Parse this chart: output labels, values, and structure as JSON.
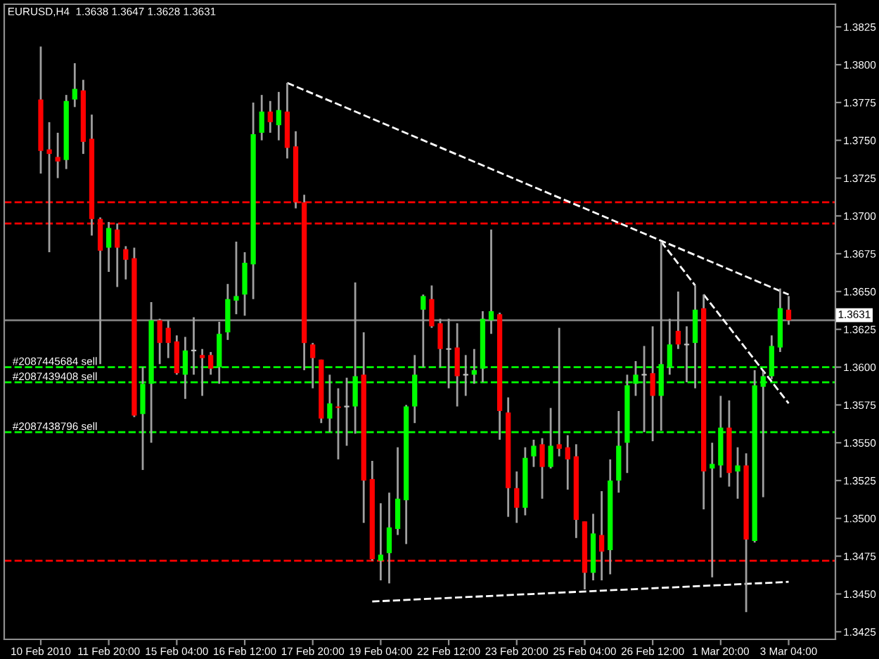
{
  "chart_data": {
    "type": "candlestick",
    "title": "EURUSD,H4  1.3638 1.3647 1.3628 1.3631",
    "categories": [
      "10 Feb 2010",
      null,
      null,
      null,
      null,
      null,
      null,
      null,
      "11 Feb 20:00",
      null,
      null,
      null,
      null,
      null,
      null,
      null,
      "15 Feb 04:00",
      null,
      null,
      null,
      null,
      null,
      null,
      null,
      "16 Feb 12:00",
      null,
      null,
      null,
      null,
      null,
      null,
      null,
      "17 Feb 20:00",
      null,
      null,
      null,
      null,
      null,
      null,
      null,
      "19 Feb 04:00",
      null,
      null,
      null,
      null,
      null,
      null,
      null,
      "22 Feb 12:00",
      null,
      null,
      null,
      null,
      null,
      null,
      null,
      "23 Feb 20:00",
      null,
      null,
      null,
      null,
      null,
      null,
      null,
      "25 Feb 04:00",
      null,
      null,
      null,
      null,
      null,
      null,
      null,
      "26 Feb 12:00",
      null,
      null,
      null,
      null,
      null,
      null,
      null,
      "1 Mar 20:00",
      null,
      null,
      null,
      null,
      null,
      null,
      null,
      "3 Mar 04:00"
    ],
    "ohlc": [
      [
        1.3777,
        1.3812,
        1.3728,
        1.3743
      ],
      [
        1.3744,
        1.3762,
        1.3676,
        1.3741
      ],
      [
        1.3739,
        1.3755,
        1.3725,
        1.3736
      ],
      [
        1.3737,
        1.378,
        1.3731,
        1.3776
      ],
      [
        1.3777,
        1.3801,
        1.3772,
        1.3784
      ],
      [
        1.3783,
        1.379,
        1.3741,
        1.3749
      ],
      [
        1.3751,
        1.3767,
        1.3687,
        1.3698
      ],
      [
        1.3698,
        1.3699,
        1.3602,
        1.3677
      ],
      [
        1.3679,
        1.3696,
        1.3663,
        1.3692
      ],
      [
        1.3691,
        1.3695,
        1.3653,
        1.3679
      ],
      [
        1.3678,
        1.368,
        1.3658,
        1.3671
      ],
      [
        1.3672,
        1.3679,
        1.3567,
        1.3568
      ],
      [
        1.3569,
        1.36,
        1.3532,
        1.3589
      ],
      [
        1.3589,
        1.3643,
        1.355,
        1.3631
      ],
      [
        1.3631,
        1.3632,
        1.3602,
        1.3616
      ],
      [
        1.3626,
        1.3631,
        1.3606,
        1.3616
      ],
      [
        1.3617,
        1.3621,
        1.3595,
        1.3596
      ],
      [
        1.3595,
        1.362,
        1.3579,
        1.3611
      ],
      [
        1.3611,
        1.3633,
        1.3595,
        1.3611
      ],
      [
        1.3608,
        1.3612,
        1.3581,
        1.3606
      ],
      [
        1.3608,
        1.361,
        1.3595,
        1.3599
      ],
      [
        1.36,
        1.363,
        1.3589,
        1.3622
      ],
      [
        1.3623,
        1.3655,
        1.3618,
        1.3645
      ],
      [
        1.3644,
        1.3683,
        1.3635,
        1.3647
      ],
      [
        1.3648,
        1.3676,
        1.3634,
        1.3669
      ],
      [
        1.3668,
        1.3775,
        1.3645,
        1.3754
      ],
      [
        1.3755,
        1.378,
        1.375,
        1.3769
      ],
      [
        1.3769,
        1.3776,
        1.3755,
        1.3762
      ],
      [
        1.376,
        1.3782,
        1.375,
        1.377
      ],
      [
        1.3769,
        1.3788,
        1.3738,
        1.3745
      ],
      [
        1.3746,
        1.3756,
        1.3705,
        1.3709
      ],
      [
        1.3709,
        1.3714,
        1.3598,
        1.3616
      ],
      [
        1.3615,
        1.3616,
        1.3586,
        1.3606
      ],
      [
        1.3605,
        1.3605,
        1.3563,
        1.3566
      ],
      [
        1.3566,
        1.3595,
        1.3557,
        1.3576
      ],
      [
        1.3574,
        1.3586,
        1.3539,
        1.3573
      ],
      [
        1.3574,
        1.3593,
        1.3548,
        1.3574
      ],
      [
        1.3574,
        1.3656,
        1.3556,
        1.3594
      ],
      [
        1.3595,
        1.3623,
        1.3497,
        1.3525
      ],
      [
        1.3526,
        1.3538,
        1.3472,
        1.3473
      ],
      [
        1.3472,
        1.351,
        1.3459,
        1.3476
      ],
      [
        1.3477,
        1.3517,
        1.3457,
        1.3494
      ],
      [
        1.3493,
        1.3547,
        1.3489,
        1.3513
      ],
      [
        1.3512,
        1.3575,
        1.3483,
        1.3574
      ],
      [
        1.3574,
        1.3608,
        1.3563,
        1.3595
      ],
      [
        1.3638,
        1.3648,
        1.36,
        1.3647
      ],
      [
        1.3645,
        1.3654,
        1.3626,
        1.3627
      ],
      [
        1.3629,
        1.3632,
        1.36,
        1.3612
      ],
      [
        1.3612,
        1.3632,
        1.3586,
        1.3612
      ],
      [
        1.3613,
        1.3629,
        1.3574,
        1.3594
      ],
      [
        1.3595,
        1.3608,
        1.3581,
        1.3595
      ],
      [
        1.3595,
        1.3612,
        1.3589,
        1.3598
      ],
      [
        1.3599,
        1.3637,
        1.359,
        1.3632
      ],
      [
        1.3631,
        1.3691,
        1.3622,
        1.3637
      ],
      [
        1.3635,
        1.3636,
        1.3552,
        1.3571
      ],
      [
        1.357,
        1.358,
        1.3501,
        1.352
      ],
      [
        1.352,
        1.3531,
        1.3497,
        1.3507
      ],
      [
        1.3507,
        1.3547,
        1.3502,
        1.354
      ],
      [
        1.3541,
        1.3552,
        1.3534,
        1.3548
      ],
      [
        1.3549,
        1.3553,
        1.3513,
        1.3534
      ],
      [
        1.3534,
        1.3573,
        1.3533,
        1.3548
      ],
      [
        1.3549,
        1.3626,
        1.3541,
        1.3546
      ],
      [
        1.3547,
        1.3555,
        1.3519,
        1.3539
      ],
      [
        1.3541,
        1.3549,
        1.3487,
        1.3499
      ],
      [
        1.3498,
        1.3498,
        1.3453,
        1.3464
      ],
      [
        1.3464,
        1.3503,
        1.3459,
        1.349
      ],
      [
        1.3489,
        1.3518,
        1.3459,
        1.3478
      ],
      [
        1.3479,
        1.3539,
        1.3463,
        1.3525
      ],
      [
        1.3525,
        1.3571,
        1.3517,
        1.3548
      ],
      [
        1.355,
        1.3595,
        1.353,
        1.3588
      ],
      [
        1.3589,
        1.3604,
        1.3581,
        1.3595
      ],
      [
        1.3595,
        1.3614,
        1.3557,
        1.3595
      ],
      [
        1.3596,
        1.3627,
        1.3551,
        1.3581
      ],
      [
        1.3581,
        1.3683,
        1.3558,
        1.3602
      ],
      [
        1.36,
        1.3632,
        1.3595,
        1.3615
      ],
      [
        1.3624,
        1.365,
        1.3612,
        1.3615
      ],
      [
        1.3615,
        1.3627,
        1.359,
        1.3615
      ],
      [
        1.3616,
        1.3654,
        1.3586,
        1.3638
      ],
      [
        1.3639,
        1.3648,
        1.3506,
        1.3531
      ],
      [
        1.3533,
        1.355,
        1.3461,
        1.3536
      ],
      [
        1.3535,
        1.3581,
        1.3527,
        1.356
      ],
      [
        1.356,
        1.3578,
        1.3521,
        1.353
      ],
      [
        1.3531,
        1.3547,
        1.3513,
        1.3535
      ],
      [
        1.3535,
        1.3543,
        1.3438,
        1.3486
      ],
      [
        1.3485,
        1.3598,
        1.3484,
        1.3588
      ],
      [
        1.3587,
        1.3597,
        1.3514,
        1.3594
      ],
      [
        1.3594,
        1.3621,
        1.3592,
        1.3614
      ],
      [
        1.3613,
        1.3652,
        1.361,
        1.3639
      ],
      [
        1.3638,
        1.3647,
        1.3628,
        1.3631
      ]
    ],
    "colors": [
      "#ff0000",
      "#ff0000",
      "#ff0000",
      "#00ff00",
      "#00ff00",
      "#ff0000",
      "#ff0000",
      "#ff0000",
      "#00ff00",
      "#ff0000",
      "#ff0000",
      "#ff0000",
      "#00ff00",
      "#00ff00",
      "#ff0000",
      "#ff0000",
      "#ff0000",
      "#00ff00",
      "#c0c0c0",
      "#ff0000",
      "#ff0000",
      "#00ff00",
      "#00ff00",
      "#00ff00",
      "#00ff00",
      "#00ff00",
      "#00ff00",
      "#ff0000",
      "#00ff00",
      "#ff0000",
      "#ff0000",
      "#ff0000",
      "#ff0000",
      "#ff0000",
      "#00ff00",
      "#ff0000",
      "#c0c0c0",
      "#00ff00",
      "#ff0000",
      "#ff0000",
      "#00ff00",
      "#00ff00",
      "#00ff00",
      "#00ff00",
      "#00ff00",
      "#00ff00",
      "#ff0000",
      "#ff0000",
      "#c0c0c0",
      "#ff0000",
      "#c0c0c0",
      "#00ff00",
      "#00ff00",
      "#00ff00",
      "#ff0000",
      "#ff0000",
      "#ff0000",
      "#00ff00",
      "#00ff00",
      "#ff0000",
      "#00ff00",
      "#ff0000",
      "#ff0000",
      "#ff0000",
      "#ff0000",
      "#00ff00",
      "#ff0000",
      "#00ff00",
      "#00ff00",
      "#00ff00",
      "#00ff00",
      "#c0c0c0",
      "#ff0000",
      "#00ff00",
      "#00ff00",
      "#ff0000",
      "#c0c0c0",
      "#00ff00",
      "#ff0000",
      "#00ff00",
      "#00ff00",
      "#ff0000",
      "#00ff00",
      "#ff0000",
      "#00ff00",
      "#00ff00",
      "#00ff00",
      "#00ff00",
      "#ff0000"
    ],
    "series": [
      {
        "type": "line",
        "color": "#ffffff",
        "line_style": "dashed",
        "values": [
          null,
          null,
          null,
          null,
          null,
          null,
          null,
          null,
          null,
          null,
          null,
          null,
          null,
          null,
          null,
          null,
          null,
          null,
          null,
          null,
          null,
          null,
          null,
          null,
          null,
          null,
          null,
          null,
          null,
          1.3788,
          null,
          null,
          null,
          null,
          null,
          null,
          null,
          null,
          null,
          null,
          null,
          null,
          null,
          null,
          null,
          null,
          null,
          null,
          null,
          null,
          null,
          null,
          null,
          null,
          null,
          null,
          null,
          null,
          null,
          null,
          null,
          null,
          null,
          null,
          null,
          null,
          null,
          null,
          null,
          null,
          null,
          null,
          null,
          null,
          null,
          null,
          null,
          null,
          null,
          null,
          null,
          null,
          null,
          null,
          null,
          null,
          null,
          null,
          1.3648
        ]
      },
      {
        "type": "line",
        "color": "#ffffff",
        "line_style": "dashed",
        "values": [
          null,
          null,
          null,
          null,
          null,
          null,
          null,
          null,
          null,
          null,
          null,
          null,
          null,
          null,
          null,
          null,
          null,
          null,
          null,
          null,
          null,
          null,
          null,
          null,
          null,
          null,
          null,
          null,
          null,
          null,
          null,
          null,
          null,
          null,
          null,
          null,
          null,
          null,
          null,
          null,
          null,
          null,
          null,
          null,
          null,
          null,
          null,
          null,
          null,
          null,
          null,
          null,
          null,
          null,
          null,
          null,
          null,
          null,
          null,
          null,
          null,
          null,
          null,
          null,
          null,
          null,
          null,
          null,
          null,
          null,
          null,
          null,
          null,
          1.3683,
          null,
          null,
          null,
          1.3654,
          null,
          null,
          null,
          null,
          null,
          null,
          null,
          null,
          null,
          null,
          null
        ]
      },
      {
        "type": "line",
        "color": "#ffffff",
        "line_style": "dashed",
        "values": [
          null,
          null,
          null,
          null,
          null,
          null,
          null,
          null,
          null,
          null,
          null,
          null,
          null,
          null,
          null,
          null,
          null,
          null,
          null,
          null,
          null,
          null,
          null,
          null,
          null,
          null,
          null,
          null,
          null,
          null,
          null,
          null,
          null,
          null,
          null,
          null,
          null,
          null,
          null,
          null,
          null,
          null,
          null,
          null,
          null,
          null,
          null,
          null,
          null,
          null,
          null,
          null,
          null,
          null,
          null,
          null,
          null,
          null,
          null,
          null,
          null,
          null,
          null,
          null,
          null,
          null,
          null,
          null,
          null,
          null,
          null,
          null,
          null,
          null,
          null,
          null,
          null,
          null,
          1.3648,
          null,
          null,
          null,
          null,
          null,
          null,
          null,
          null,
          null,
          1.3576
        ]
      },
      {
        "type": "line",
        "color": "#ffffff",
        "line_style": "dashed",
        "values": [
          null,
          null,
          null,
          null,
          null,
          null,
          null,
          null,
          null,
          null,
          null,
          null,
          null,
          null,
          null,
          null,
          null,
          null,
          null,
          null,
          null,
          null,
          null,
          null,
          null,
          null,
          null,
          null,
          null,
          null,
          null,
          null,
          null,
          null,
          null,
          null,
          null,
          null,
          null,
          1.3445,
          null,
          null,
          null,
          null,
          null,
          null,
          null,
          null,
          null,
          null,
          null,
          null,
          null,
          null,
          null,
          null,
          null,
          null,
          null,
          null,
          null,
          null,
          null,
          null,
          null,
          null,
          null,
          null,
          null,
          null,
          null,
          null,
          null,
          null,
          null,
          null,
          null,
          null,
          null,
          null,
          null,
          null,
          null,
          null,
          null,
          null,
          null,
          null,
          1.3458
        ]
      }
    ],
    "ref_lines": [
      {
        "axis": "y",
        "value": 1.3709,
        "color": "#ff0000",
        "line_style": "dashed"
      },
      {
        "axis": "y",
        "value": 1.3695,
        "color": "#ff0000",
        "line_style": "dashed"
      },
      {
        "axis": "y",
        "value": 1.3472,
        "color": "#ff0000",
        "line_style": "dashed"
      },
      {
        "axis": "y",
        "value": 1.36,
        "color": "#00ff00",
        "line_style": "dashed",
        "label": "#2087445684 sell"
      },
      {
        "axis": "y",
        "value": 1.359,
        "color": "#00ff00",
        "line_style": "dashed",
        "label": "#2087439408 sell"
      },
      {
        "axis": "y",
        "value": 1.3557,
        "color": "#00ff00",
        "line_style": "dashed",
        "label": "#2087438796 sell"
      },
      {
        "axis": "y",
        "value": 1.3631,
        "color": "#808080",
        "line_style": "solid",
        "label": "1.3631"
      }
    ],
    "ylim": [
      1.342,
      1.384
    ],
    "yticks": [
      1.3425,
      {
        "value": 1.345,
        "label": "1.3450"
      },
      1.3475,
      {
        "value": 1.35,
        "label": "1.3500"
      },
      1.3525,
      {
        "value": 1.355,
        "label": "1.3550"
      },
      1.3575,
      {
        "value": 1.36,
        "label": "1.3600"
      },
      1.3625,
      {
        "value": 1.365,
        "label": "1.3650"
      },
      1.3675,
      {
        "value": 1.37,
        "label": "1.3700"
      },
      1.3725,
      {
        "value": 1.375,
        "label": "1.3750"
      },
      1.3775,
      {
        "value": 1.38,
        "label": "1.3800"
      },
      1.3825
    ],
    "grid": false,
    "legend": false
  }
}
